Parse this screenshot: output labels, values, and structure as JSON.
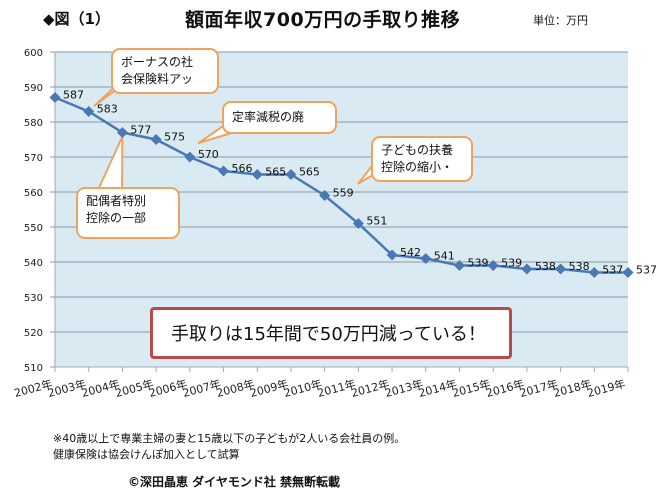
{
  "header": {
    "figure_label": "◆図（1）",
    "title": "額面年収700万円の手取り推移",
    "unit": "単位：万円"
  },
  "chart_data": {
    "type": "line",
    "title": "額面年収700万円の手取り推移",
    "xlabel": "",
    "ylabel": "",
    "unit": "万円",
    "categories": [
      "2002年",
      "2003年",
      "2004年",
      "2005年",
      "2006年",
      "2007年",
      "2008年",
      "2009年",
      "2010年",
      "2011年",
      "2012年",
      "2013年",
      "2014年",
      "2015年",
      "2016年",
      "2017年",
      "2018年",
      "2019年"
    ],
    "series": [
      {
        "name": "手取り",
        "values": [
          587,
          583,
          577,
          575,
          570,
          566,
          565,
          565,
          559,
          551,
          542,
          541,
          539,
          539,
          538,
          538,
          537,
          537
        ],
        "color": "#4a78b5"
      }
    ],
    "data_labels": [
      "587",
      "583",
      "577",
      "575",
      "570",
      "566",
      "565",
      "565",
      "559",
      "551",
      "542",
      "541",
      "539",
      "539",
      "538",
      "538",
      "537",
      "537"
    ],
    "ylim": [
      510,
      600
    ],
    "yticks": [
      "510",
      "520",
      "530",
      "540",
      "550",
      "560",
      "570",
      "580",
      "590",
      "600"
    ],
    "grid": true,
    "legend": "none",
    "plot_background": "#daeaf3",
    "gridline_color": "#8a9aa6"
  },
  "annotations": {
    "bonus": [
      "ボーナスの社",
      "会保険料アッ"
    ],
    "spouse": [
      "配偶者特別",
      "控除の一部"
    ],
    "teiritsu": [
      "定率減税の廃"
    ],
    "children": [
      "子どもの扶養",
      "控除の縮小・"
    ],
    "banner": "手取りは15年間で50万円減っている！",
    "callout_border": "#f0a35e",
    "banner_border": "#b84a4a"
  },
  "footer": {
    "note1": "※40歳以上で専業主婦の妻と15歳以下の子どもが2人いる会社員の例。",
    "note2": "健康保険は協会けんぽ加入として試算",
    "credit": "©深田晶恵 ダイヤモンド社 禁無断転載"
  }
}
